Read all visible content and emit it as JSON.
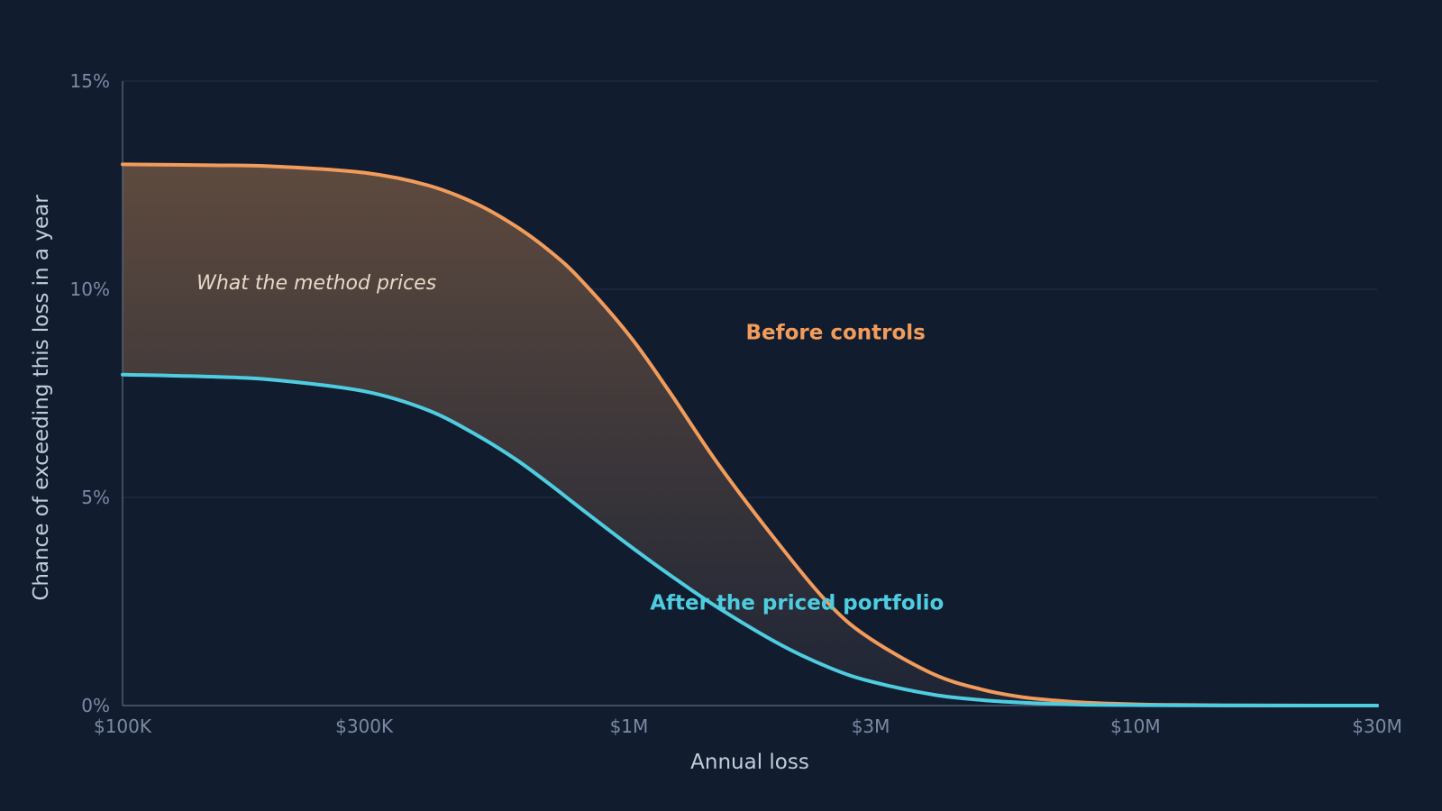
{
  "chart_data": {
    "type": "area",
    "xlabel": "Annual loss",
    "ylabel": "Chance of exceeding this loss in a year",
    "x_scale": "log",
    "xlim": [
      100000,
      30000000
    ],
    "ylim": [
      0,
      15
    ],
    "x_ticks": [
      {
        "value": 100000,
        "label": "$100K"
      },
      {
        "value": 300000,
        "label": "$300K"
      },
      {
        "value": 1000000,
        "label": "$1M"
      },
      {
        "value": 3000000,
        "label": "$3M"
      },
      {
        "value": 10000000,
        "label": "$10M"
      },
      {
        "value": 30000000,
        "label": "$30M"
      }
    ],
    "y_ticks": [
      {
        "value": 0,
        "label": "0%"
      },
      {
        "value": 5,
        "label": "5%"
      },
      {
        "value": 10,
        "label": "10%"
      },
      {
        "value": 15,
        "label": "15%"
      }
    ],
    "grid": "horizontal",
    "x": [
      100000,
      150000,
      200000,
      300000,
      400000,
      500000,
      600000,
      700000,
      800000,
      1000000,
      1200000,
      1500000,
      2000000,
      2500000,
      3000000,
      4000000,
      5000000,
      6000000,
      7000000,
      8000000,
      10000000,
      12000000,
      15000000,
      20000000,
      30000000
    ],
    "series": [
      {
        "name": "Before controls",
        "color": "#f29c5b",
        "values": [
          13.0,
          12.98,
          12.95,
          12.8,
          12.5,
          12.05,
          11.5,
          10.9,
          10.25,
          8.9,
          7.55,
          5.8,
          3.8,
          2.4,
          1.6,
          0.75,
          0.38,
          0.2,
          0.12,
          0.07,
          0.03,
          0.015,
          0.006,
          0.002,
          0.0
        ]
      },
      {
        "name": "After the priced portfolio",
        "color": "#4fcde0",
        "values": [
          7.95,
          7.9,
          7.82,
          7.55,
          7.1,
          6.5,
          5.9,
          5.3,
          4.75,
          3.85,
          3.15,
          2.35,
          1.45,
          0.9,
          0.58,
          0.26,
          0.13,
          0.07,
          0.04,
          0.02,
          0.01,
          0.005,
          0.002,
          0.001,
          0.0
        ]
      }
    ],
    "shaded_region": {
      "between": [
        "Before controls",
        "After the priced portfolio"
      ],
      "fill_top": "#5e4a3e",
      "fill_bottom": "#1e2536"
    },
    "annotations": [
      {
        "text": "What the method prices",
        "x": 140000,
        "y": 10.0
      },
      {
        "text": "Before controls",
        "x": 1700000,
        "y": 8.8,
        "series": 0
      },
      {
        "text": "After the priced portfolio",
        "x": 1100000,
        "y": 2.3,
        "series": 1
      }
    ]
  }
}
